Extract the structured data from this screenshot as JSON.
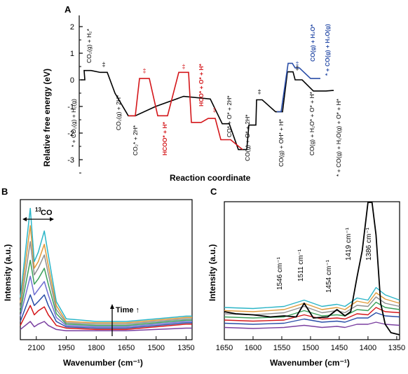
{
  "colors": {
    "black_path": "#000000",
    "red_path": "#d4161a",
    "blue_path": "#2a4ea8"
  },
  "panels": {
    "A": {
      "letter": "A",
      "ylabel": "Relative free energy (eV)",
      "xlabel": "Reaction coordinate",
      "yticks": [
        "2",
        "1",
        "0",
        "-1",
        "-2",
        "-3"
      ],
      "labels": [
        {
          "text": "CO₂(g) + H₂*",
          "color": "black"
        },
        {
          "text": "* + CO₂(g) + H₂(g)",
          "color": "black"
        },
        {
          "text": "CO₂(g) + 2H*",
          "color": "black"
        },
        {
          "text": "CO₂* + 2H*",
          "color": "black"
        },
        {
          "text": "HCOO* + H*",
          "color": "red"
        },
        {
          "text": "HCO* + O* + H*",
          "color": "red"
        },
        {
          "text": "CO* + O* + 2H*",
          "color": "black"
        },
        {
          "text": "CO(g) + O* + 2H*",
          "color": "black"
        },
        {
          "text": "CO(g) + OH* + H*",
          "color": "black"
        },
        {
          "text": "CO(g) + H₂O* + O* + H*",
          "color": "black"
        },
        {
          "text": "* + CO(g) + H₂O(g) + O* + H*",
          "color": "black"
        },
        {
          "text": "CO(g) + H₂O*",
          "color": "blue"
        },
        {
          "text": "* + CO(g) + H₂O(g)",
          "color": "blue"
        }
      ],
      "ts_symbol": "‡"
    },
    "B": {
      "letter": "B",
      "ylabel": "Intensity (a.u.)",
      "xlabel": "Wavenumber (cm⁻¹)",
      "xticks": [
        "2100",
        "1950",
        "1800",
        "1650",
        "1500",
        "1350"
      ],
      "band_label_sup": "13",
      "band_label": "CO",
      "time_label": "Time ↑"
    },
    "C": {
      "letter": "C",
      "ylabel": "Intensity (a.u.)",
      "xlabel": "Wavenumber (cm⁻¹)",
      "xticks": [
        "1650",
        "1600",
        "1550",
        "1500",
        "1450",
        "1400",
        "1350"
      ],
      "peaks": [
        "1546 cm⁻¹",
        "1511 cm⁻¹",
        "1454 cm⁻¹",
        "1419 cm⁻¹",
        "1386 cm⁻¹"
      ]
    }
  },
  "chart_data": [
    {
      "type": "line",
      "title": "",
      "xlabel": "Reaction coordinate",
      "ylabel": "Relative free energy (eV)",
      "ylim": [
        -3.2,
        2.4
      ],
      "yticks": [
        2,
        1,
        0,
        -1,
        -2,
        -3
      ],
      "series": [
        {
          "color": "black",
          "x": [
            0,
            1,
            2,
            3,
            4,
            5,
            6,
            7,
            8,
            9,
            10,
            11,
            12,
            13,
            14,
            15,
            16,
            17
          ],
          "y": [
            0.0,
            0.35,
            0.28,
            -0.5,
            -1.35,
            -1.0,
            -0.62,
            -0.72,
            -1.65,
            -2.62,
            -1.7,
            -0.75,
            -1.2,
            0.3,
            0.0,
            -0.42,
            -0.4,
            -0.4
          ]
        },
        {
          "color": "red",
          "x": [
            0,
            1,
            2,
            3,
            4,
            5,
            6,
            7
          ],
          "y": [
            -1.35,
            0.05,
            -1.35,
            0.28,
            -1.6,
            -1.45,
            -2.25,
            -2.62
          ]
        },
        {
          "color": "blue",
          "x": [
            0,
            1,
            2,
            3
          ],
          "y": [
            -1.2,
            0.62,
            0.45,
            0.05
          ]
        }
      ]
    },
    {
      "type": "line",
      "title": "",
      "xlabel": "Wavenumber (cm⁻¹)",
      "ylabel": "Intensity (a.u.)",
      "xlim": [
        2180,
        1320
      ],
      "xticks": [
        2100,
        1950,
        1800,
        1650,
        1500,
        1350
      ],
      "series": [
        {
          "color": "#2bb5c7",
          "x": [
            2180,
            2130,
            2110,
            2090,
            2060,
            2040,
            2000,
            1950,
            1800,
            1650,
            1500,
            1350,
            1320
          ],
          "y": [
            0.28,
            0.95,
            0.55,
            0.62,
            0.78,
            0.6,
            0.25,
            0.12,
            0.1,
            0.1,
            0.12,
            0.14,
            0.14
          ]
        },
        {
          "color": "#e09a3a",
          "x": [
            2180,
            2130,
            2110,
            2090,
            2060,
            2040,
            2000,
            1950,
            1800,
            1650,
            1500,
            1350,
            1320
          ],
          "y": [
            0.24,
            0.82,
            0.5,
            0.55,
            0.68,
            0.52,
            0.22,
            0.1,
            0.09,
            0.09,
            0.11,
            0.13,
            0.13
          ]
        },
        {
          "color": "#8f8f8f",
          "x": [
            2180,
            2130,
            2110,
            2090,
            2060,
            2040,
            2000,
            1950,
            1800,
            1650,
            1500,
            1350,
            1320
          ],
          "y": [
            0.2,
            0.7,
            0.45,
            0.5,
            0.6,
            0.46,
            0.19,
            0.09,
            0.08,
            0.08,
            0.1,
            0.12,
            0.12
          ]
        },
        {
          "color": "#3aa05a",
          "x": [
            2180,
            2130,
            2110,
            2090,
            2060,
            2040,
            2000,
            1950,
            1800,
            1650,
            1500,
            1350,
            1320
          ],
          "y": [
            0.17,
            0.56,
            0.38,
            0.42,
            0.5,
            0.38,
            0.16,
            0.08,
            0.07,
            0.07,
            0.09,
            0.11,
            0.11
          ]
        },
        {
          "color": "#6f6fd2",
          "x": [
            2180,
            2130,
            2110,
            2090,
            2060,
            2040,
            2000,
            1950,
            1800,
            1650,
            1500,
            1350,
            1320
          ],
          "y": [
            0.14,
            0.44,
            0.3,
            0.34,
            0.4,
            0.3,
            0.13,
            0.07,
            0.06,
            0.06,
            0.08,
            0.1,
            0.1
          ]
        },
        {
          "color": "#2a4ea8",
          "x": [
            2180,
            2130,
            2110,
            2090,
            2060,
            2040,
            2000,
            1950,
            1800,
            1650,
            1500,
            1350,
            1320
          ],
          "y": [
            0.1,
            0.3,
            0.22,
            0.25,
            0.3,
            0.22,
            0.1,
            0.06,
            0.05,
            0.05,
            0.07,
            0.09,
            0.09
          ]
        },
        {
          "color": "#d4161a",
          "x": [
            2180,
            2130,
            2110,
            2090,
            2060,
            2040,
            2000,
            1950,
            1800,
            1650,
            1500,
            1350,
            1320
          ],
          "y": [
            0.07,
            0.22,
            0.15,
            0.18,
            0.21,
            0.15,
            0.07,
            0.05,
            0.04,
            0.04,
            0.06,
            0.08,
            0.08
          ]
        },
        {
          "color": "#7a3fa0",
          "x": [
            2180,
            2130,
            2110,
            2090,
            2060,
            2040,
            2000,
            1950,
            1800,
            1650,
            1500,
            1350,
            1320
          ],
          "y": [
            0.04,
            0.1,
            0.06,
            0.08,
            0.1,
            0.07,
            0.04,
            0.03,
            0.03,
            0.03,
            0.04,
            0.05,
            0.05
          ]
        }
      ]
    },
    {
      "type": "line",
      "title": "",
      "xlabel": "Wavenumber (cm⁻¹)",
      "ylabel": "Intensity (a.u.)",
      "xlim": [
        1650,
        1345
      ],
      "xticks": [
        1650,
        1600,
        1550,
        1500,
        1450,
        1400,
        1350
      ],
      "series": [
        {
          "color": "#000000",
          "x": [
            1650,
            1630,
            1600,
            1570,
            1546,
            1525,
            1511,
            1495,
            1470,
            1454,
            1440,
            1430,
            1419,
            1410,
            1400,
            1393,
            1386,
            1378,
            1370,
            1360,
            1345
          ],
          "y": [
            0.22,
            0.2,
            0.19,
            0.17,
            0.18,
            0.17,
            0.3,
            0.16,
            0.17,
            0.24,
            0.18,
            0.22,
            0.55,
            0.8,
            1.3,
            1.3,
            0.95,
            0.3,
            0.1,
            0.02,
            0.0
          ]
        },
        {
          "color": "#2bb5c7",
          "x": [
            1650,
            1600,
            1546,
            1511,
            1480,
            1454,
            1440,
            1419,
            1400,
            1386,
            1370,
            1345
          ],
          "y": [
            0.26,
            0.25,
            0.27,
            0.33,
            0.27,
            0.29,
            0.27,
            0.35,
            0.33,
            0.45,
            0.38,
            0.33
          ]
        },
        {
          "color": "#e09a3a",
          "x": [
            1650,
            1600,
            1546,
            1511,
            1480,
            1454,
            1440,
            1419,
            1400,
            1386,
            1370,
            1345
          ],
          "y": [
            0.23,
            0.22,
            0.24,
            0.3,
            0.24,
            0.26,
            0.24,
            0.32,
            0.3,
            0.4,
            0.34,
            0.3
          ]
        },
        {
          "color": "#8f8f8f",
          "x": [
            1650,
            1600,
            1546,
            1511,
            1480,
            1454,
            1440,
            1419,
            1400,
            1386,
            1370,
            1345
          ],
          "y": [
            0.2,
            0.19,
            0.21,
            0.27,
            0.21,
            0.23,
            0.21,
            0.28,
            0.27,
            0.36,
            0.3,
            0.27
          ]
        },
        {
          "color": "#3aa05a",
          "x": [
            1650,
            1600,
            1546,
            1511,
            1480,
            1454,
            1440,
            1419,
            1400,
            1386,
            1370,
            1345
          ],
          "y": [
            0.17,
            0.16,
            0.17,
            0.23,
            0.18,
            0.19,
            0.18,
            0.24,
            0.23,
            0.31,
            0.26,
            0.24
          ]
        },
        {
          "color": "#d4161a",
          "x": [
            1650,
            1600,
            1546,
            1511,
            1480,
            1454,
            1440,
            1419,
            1400,
            1386,
            1370,
            1345
          ],
          "y": [
            0.14,
            0.13,
            0.14,
            0.19,
            0.15,
            0.16,
            0.15,
            0.2,
            0.19,
            0.26,
            0.22,
            0.21
          ]
        },
        {
          "color": "#2a4ea8",
          "x": [
            1650,
            1600,
            1546,
            1511,
            1480,
            1454,
            1440,
            1419,
            1400,
            1386,
            1370,
            1345
          ],
          "y": [
            0.11,
            0.1,
            0.11,
            0.15,
            0.12,
            0.13,
            0.12,
            0.16,
            0.16,
            0.21,
            0.18,
            0.17
          ]
        },
        {
          "color": "#7a3fa0",
          "x": [
            1650,
            1600,
            1546,
            1511,
            1480,
            1454,
            1440,
            1419,
            1400,
            1386,
            1370,
            1345
          ],
          "y": [
            0.07,
            0.06,
            0.07,
            0.09,
            0.07,
            0.08,
            0.07,
            0.1,
            0.1,
            0.12,
            0.1,
            0.09
          ]
        }
      ]
    }
  ]
}
